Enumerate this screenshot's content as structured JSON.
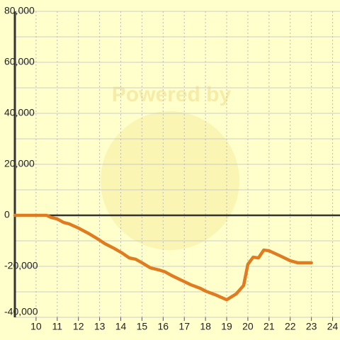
{
  "chart_data": {
    "type": "line",
    "watermark": "Powered by",
    "x": [
      9,
      10.5,
      10.7,
      11.0,
      11.3,
      11.55,
      12,
      12.5,
      12.9,
      13.25,
      13.65,
      14.05,
      14.4,
      14.7,
      15,
      15.4,
      15.8,
      16.1,
      16.4,
      16.9,
      17.3,
      17.75,
      18,
      18.45,
      19,
      19.45,
      19.8,
      20,
      20.25,
      20.5,
      20.75,
      21,
      21.5,
      22,
      22.35,
      23
    ],
    "values": [
      0,
      0,
      -800,
      -1400,
      -2800,
      -3300,
      -5000,
      -7200,
      -9200,
      -11100,
      -12800,
      -14700,
      -16700,
      -17200,
      -18600,
      -20600,
      -21400,
      -22200,
      -23600,
      -25600,
      -27200,
      -28600,
      -29700,
      -31100,
      -33100,
      -30800,
      -27500,
      -19200,
      -16400,
      -16700,
      -13600,
      -13900,
      -15800,
      -17800,
      -18600,
      -18600
    ],
    "color": "#e07b20",
    "xlim": [
      9,
      24.35
    ],
    "xticks": [
      10,
      11,
      12,
      13,
      14,
      15,
      16,
      17,
      18,
      19,
      20,
      21,
      22,
      23,
      24
    ],
    "ylim": [
      -40000,
      80000
    ],
    "yticks": [
      {
        "value": -40000,
        "label": "-40,000"
      },
      {
        "value": -20000,
        "label": "-20,000"
      },
      0,
      {
        "value": 20000,
        "label": "20,000"
      },
      {
        "value": 40000,
        "label": "40,000"
      },
      {
        "value": 60000,
        "label": "60,000"
      },
      {
        "value": 80000,
        "label": "80,000"
      }
    ],
    "y_minor_gridlines": [
      -30000,
      -10000,
      10000,
      30000,
      50000,
      70000
    ],
    "grid": true
  }
}
